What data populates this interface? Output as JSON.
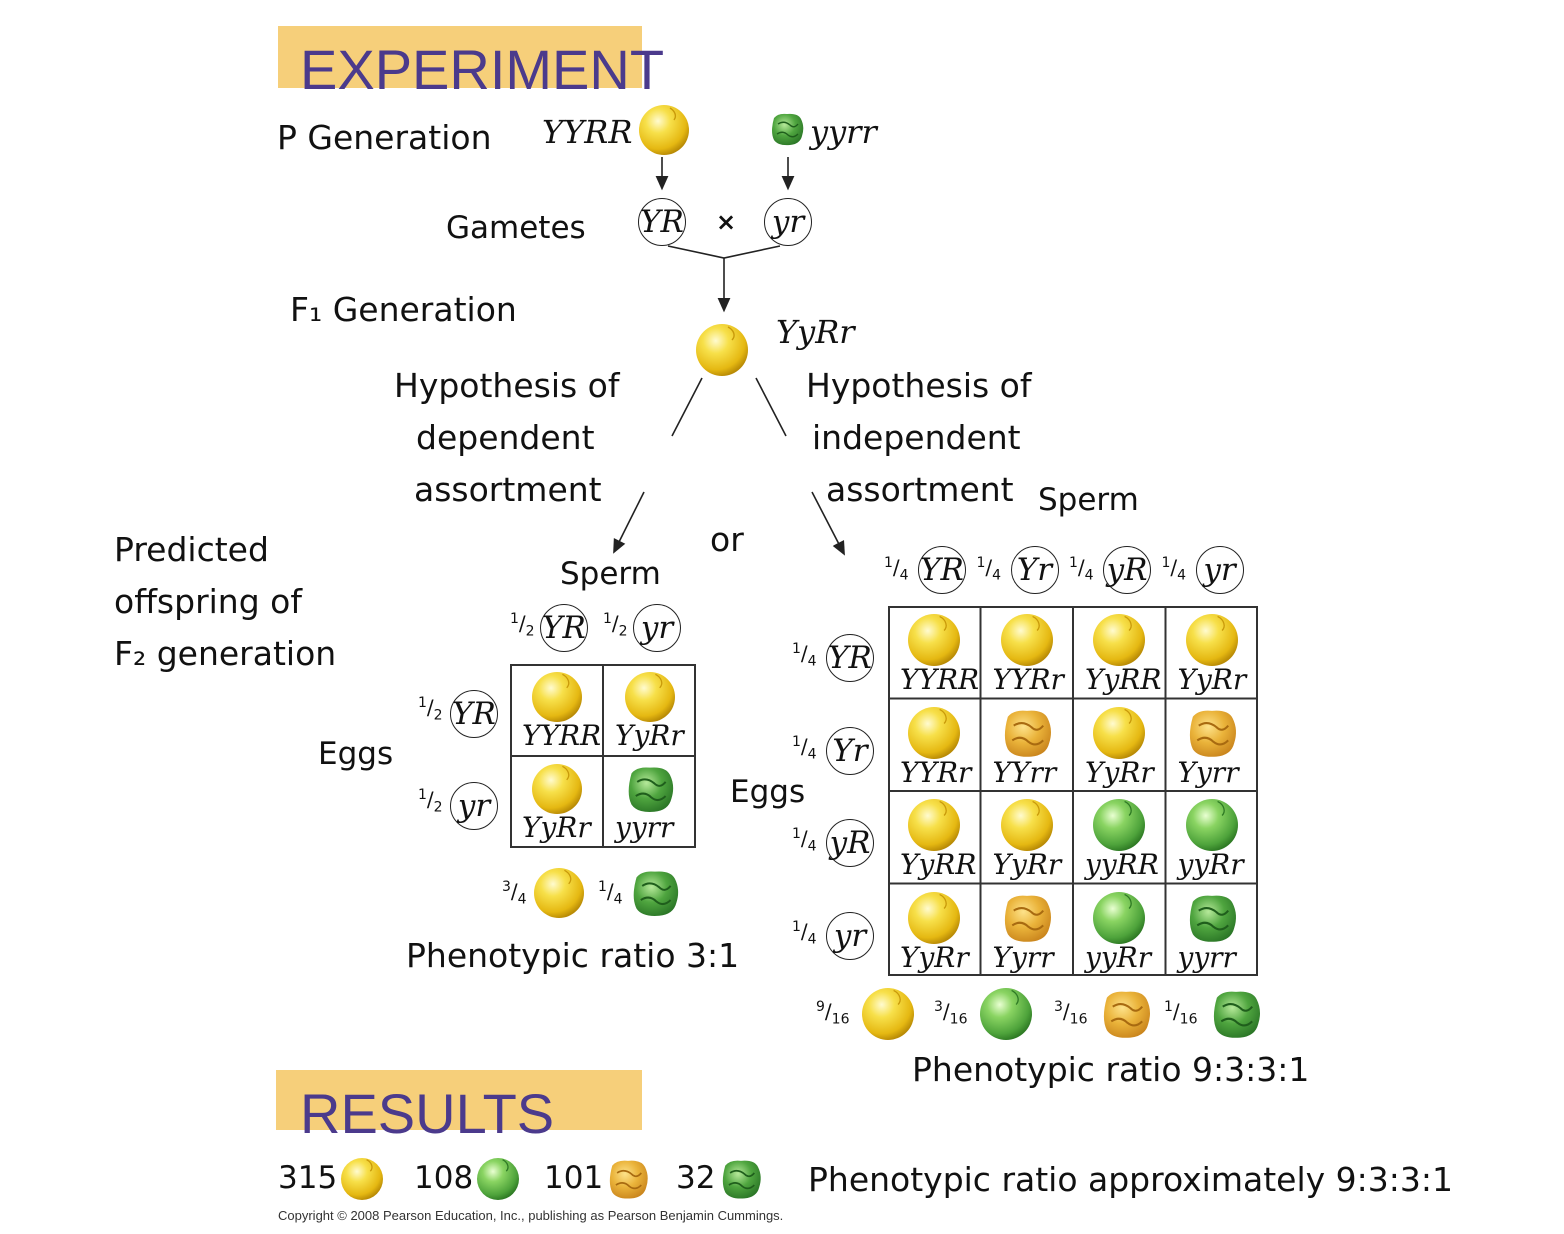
{
  "experiment_title": "EXPERIMENT",
  "results_title": "RESULTS",
  "p_generation": "P Generation",
  "gametes": "Gametes",
  "f1_generation": "F₁ Generation",
  "parents": {
    "left": "YYRR",
    "right": "yyrr"
  },
  "gamete_left": "YR",
  "gamete_right": "yr",
  "cross_symbol": "×",
  "f1_genotype": "YyRr",
  "hyp_dependent": [
    "Hypothesis of",
    "dependent",
    "assortment"
  ],
  "hyp_independent": [
    "Hypothesis of",
    "independent",
    "assortment"
  ],
  "or": "or",
  "predicted": [
    "Predicted",
    "offspring of",
    "F₂ generation"
  ],
  "sperm": "Sperm",
  "eggs": "Eggs",
  "dependent": {
    "alleles": [
      "YR",
      "yr"
    ],
    "fraction": "1/2",
    "cells": [
      [
        "YYRR",
        "YyRr"
      ],
      [
        "YyRr",
        "yyrr"
      ]
    ],
    "phenotypes": [
      {
        "frac": "3/4",
        "pea": "yellow-round"
      },
      {
        "frac": "1/4",
        "pea": "green-wrinkled"
      }
    ],
    "ratio": "Phenotypic ratio 3:1"
  },
  "independent": {
    "alleles": [
      "YR",
      "Yr",
      "yR",
      "yr"
    ],
    "fraction": "1/4",
    "cells": [
      [
        "YYRR",
        "YYRr",
        "YyRR",
        "YyRr"
      ],
      [
        "YYRr",
        "YYrr",
        "YyRr",
        "Yyrr"
      ],
      [
        "YyRR",
        "YyRr",
        "yyRR",
        "yyRr"
      ],
      [
        "YyRr",
        "Yyrr",
        "yyRr",
        "yyrr"
      ]
    ],
    "phenotypes": [
      {
        "frac": "9/16",
        "pea": "yellow-round"
      },
      {
        "frac": "3/16",
        "pea": "green-round"
      },
      {
        "frac": "3/16",
        "pea": "yellow-wrinkled"
      },
      {
        "frac": "1/16",
        "pea": "green-wrinkled"
      }
    ],
    "ratio": "Phenotypic ratio 9:3:3:1"
  },
  "results": {
    "counts": [
      {
        "n": "315",
        "pea": "yellow-round"
      },
      {
        "n": "108",
        "pea": "green-round"
      },
      {
        "n": "101",
        "pea": "yellow-wrinkled"
      },
      {
        "n": "32",
        "pea": "green-wrinkled"
      }
    ],
    "ratio": "Phenotypic ratio approximately 9:3:3:1"
  },
  "copyright": "Copyright © 2008 Pearson Education, Inc., publishing as Pearson Benjamin Cummings.",
  "colors": {
    "banner": "#f6cf7a",
    "banner_text": "#4b3a8c",
    "yellow_pea": "#f2cf22",
    "green_pea": "#5fb94a",
    "wrinkled_yellow": "#e3a92d",
    "wrinkled_green": "#3f9a3a"
  }
}
